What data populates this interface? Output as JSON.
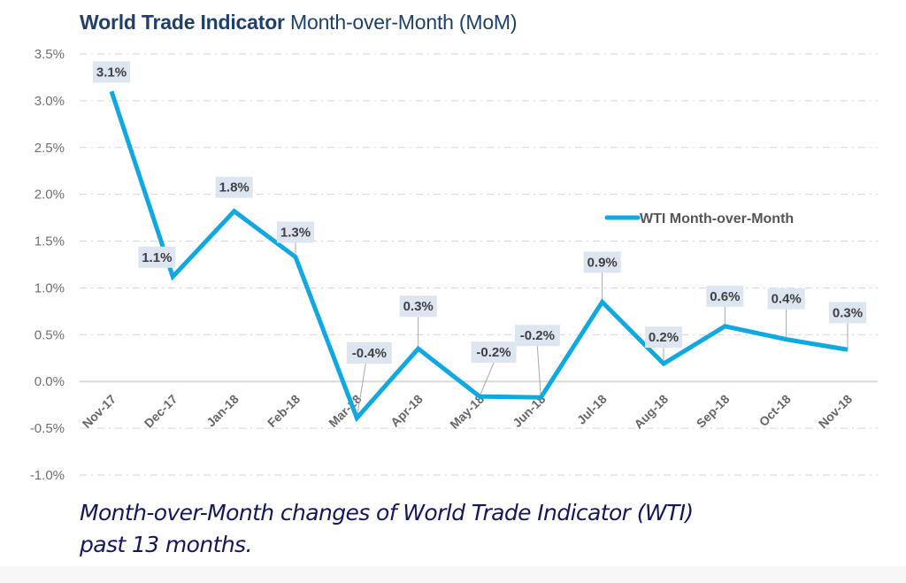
{
  "header": {
    "title_bold": "World Trade Indicator",
    "title_light": "Month-over-Month (MoM)"
  },
  "caption": {
    "line1": "Month-over-Month changes of World Trade Indicator (WTI)",
    "line2": "past 13 months."
  },
  "colors": {
    "series": "#0fa8e0",
    "title": "#1f3f6e",
    "caption": "#14185a",
    "label_box": "#dde6f0",
    "grid": "#d6d6d6",
    "zero_line": "#d9d9d9"
  },
  "chart_data": {
    "type": "line",
    "title": "World Trade Indicator Month-over-Month (MoM)",
    "xlabel": "",
    "ylabel": "",
    "categories": [
      "Nov-17",
      "Dec-17",
      "Jan-18",
      "Feb-18",
      "Mar-18",
      "Apr-18",
      "May-18",
      "Jun-18",
      "Jul-18",
      "Aug-18",
      "Sep-18",
      "Oct-18",
      "Nov-18"
    ],
    "series": [
      {
        "name": "WTI Month-over-Month",
        "values": [
          3.1,
          1.1,
          1.8,
          1.3,
          -0.4,
          0.3,
          -0.2,
          -0.2,
          0.9,
          0.2,
          0.6,
          0.4,
          0.3
        ],
        "plotted_values": [
          3.1,
          1.12,
          1.82,
          1.33,
          -0.39,
          0.35,
          -0.16,
          -0.17,
          0.85,
          0.19,
          0.59,
          0.45,
          0.34
        ],
        "labels": [
          "3.1%",
          "1.1%",
          "1.8%",
          "1.3%",
          "-0.4%",
          "0.3%",
          "-0.2%",
          "-0.2%",
          "0.9%",
          "0.2%",
          "0.6%",
          "0.4%",
          "0.3%"
        ]
      }
    ],
    "ylim": [
      -1.0,
      3.5
    ],
    "yticks": [
      3.5,
      3.0,
      2.5,
      2.0,
      1.5,
      1.0,
      0.5,
      0.0,
      -0.5,
      -1.0
    ],
    "ytick_labels": [
      "3.5%",
      "3.0%",
      "2.5%",
      "2.0%",
      "1.5%",
      "1.0%",
      "0.5%",
      "0.0%",
      "-0.5%",
      "-1.0%"
    ],
    "grid": true,
    "grid_style": "dash-dot",
    "legend": {
      "position": "right",
      "entries": [
        "WTI Month-over-Month"
      ]
    }
  }
}
